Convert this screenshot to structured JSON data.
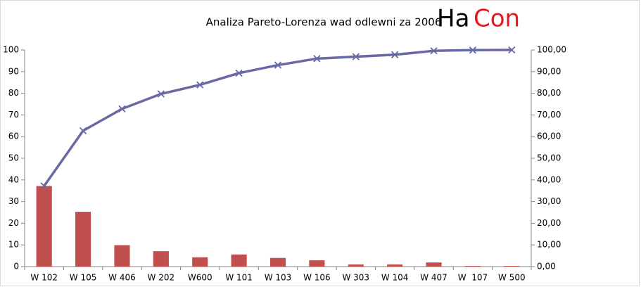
{
  "chart_data": {
    "type": "bar-line",
    "title": "Analiza Pareto-Lorenza wad odlewni za 2006",
    "logo": {
      "left": "Ha",
      "right": "Con"
    },
    "categories": [
      "W 102",
      "W 105",
      "W 406",
      "W 202",
      "W600",
      "W 101",
      "W 103",
      "W 106",
      "W 303",
      "W 104",
      "W 407",
      "W  107",
      "W 500"
    ],
    "series": [
      {
        "type": "bar",
        "color": "#c0504d",
        "values": [
          37.2,
          25.3,
          9.9,
          7.1,
          4.3,
          5.6,
          4.0,
          2.9,
          1.0,
          1.0,
          1.9,
          0.3,
          0.3
        ]
      },
      {
        "type": "line",
        "axis": "y2",
        "color": "#6969a3",
        "values": [
          37.2,
          62.7,
          72.8,
          79.7,
          83.9,
          89.3,
          93.0,
          96.0,
          96.9,
          97.8,
          99.6,
          99.9,
          100
        ]
      }
    ],
    "ylim": [
      0,
      100
    ],
    "yticks": [
      0,
      10,
      20,
      30,
      40,
      50,
      60,
      70,
      80,
      90,
      100
    ],
    "y2lim": [
      0,
      100
    ],
    "y2ticks": [
      {
        "value": 0,
        "label": "0,00"
      },
      {
        "value": 10,
        "label": "10,00"
      },
      {
        "value": 20,
        "label": "20,00"
      },
      {
        "value": 30,
        "label": "30,00"
      },
      {
        "value": 40,
        "label": "40,00"
      },
      {
        "value": 50,
        "label": "50,00"
      },
      {
        "value": 60,
        "label": "60,00"
      },
      {
        "value": 70,
        "label": "70,00"
      },
      {
        "value": 80,
        "label": "80,00"
      },
      {
        "value": 90,
        "label": "90,00"
      },
      {
        "value": 100,
        "label": "100,00"
      }
    ],
    "grid": false
  }
}
